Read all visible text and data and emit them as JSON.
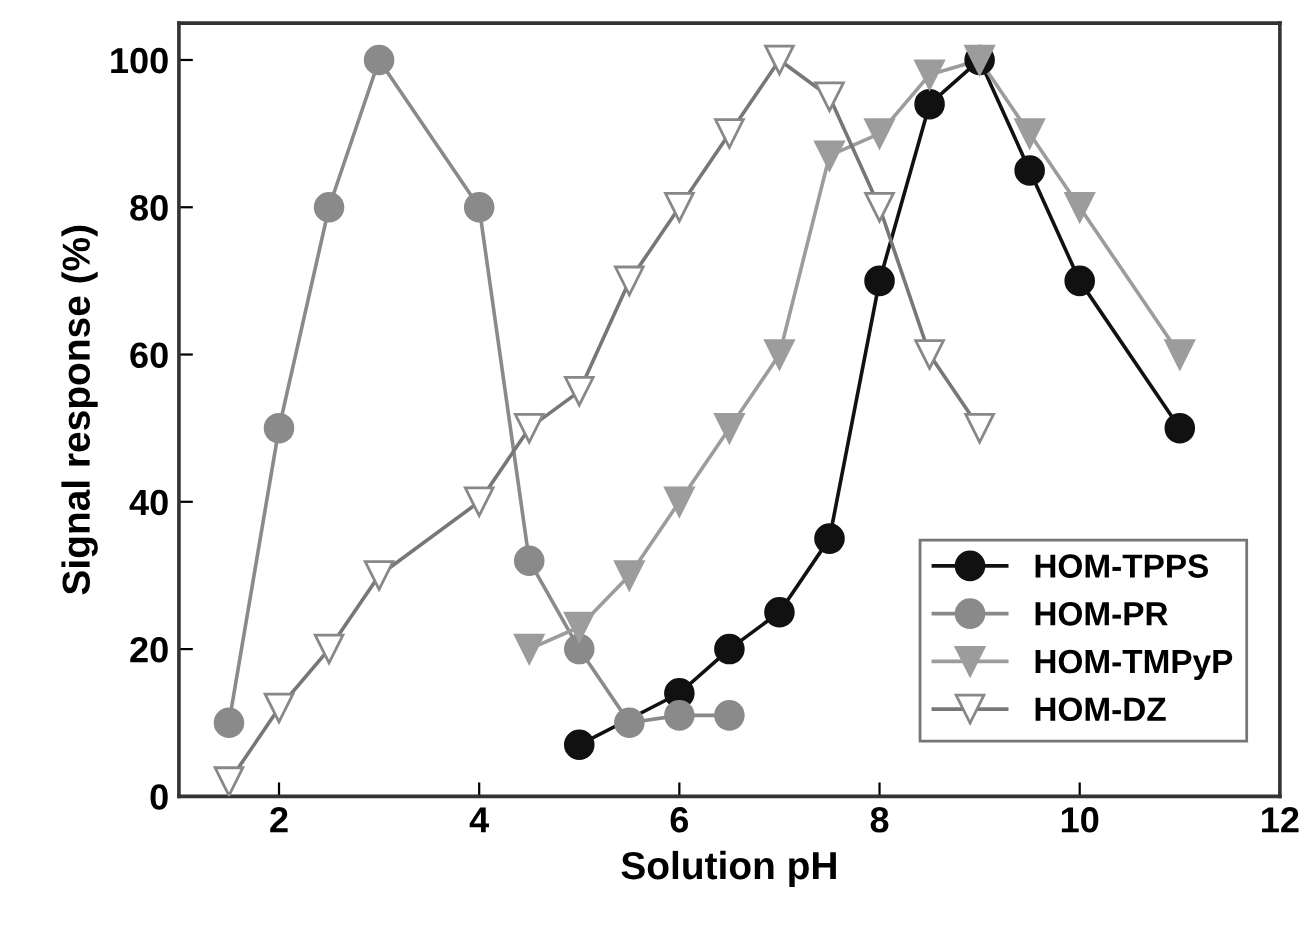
{
  "chart_data": {
    "type": "line",
    "xlabel": "Solution pH",
    "ylabel": "Signal response (%)",
    "xlim": [
      1,
      12
    ],
    "xticks": [
      2,
      4,
      6,
      8,
      10,
      12
    ],
    "ylim": [
      0,
      105
    ],
    "yticks": [
      0,
      20,
      40,
      60,
      80,
      100
    ],
    "grid": false,
    "legend": "bottom right",
    "series": [
      {
        "name": "HOM-TPPS",
        "color": "#111111",
        "marker": "circle",
        "x": [
          5,
          6,
          6.5,
          7,
          7.5,
          8,
          8.5,
          9,
          9.5,
          10,
          11
        ],
        "values": [
          7,
          14,
          20,
          25,
          35,
          70,
          94,
          100,
          85,
          70,
          50
        ]
      },
      {
        "name": "HOM-PR",
        "color": "#8a8a8a",
        "marker": "circle",
        "x": [
          1.5,
          2,
          2.5,
          3,
          4,
          4.5,
          5,
          5.5,
          6,
          6.5
        ],
        "values": [
          10,
          50,
          80,
          100,
          80,
          32,
          20,
          10,
          11,
          11
        ]
      },
      {
        "name": "HOM-TMPyP",
        "color": "#9c9c9c",
        "marker": "triangle",
        "x": [
          4.5,
          5,
          5.5,
          6,
          6.5,
          7,
          7.5,
          8,
          8.5,
          9,
          9.5,
          10,
          11
        ],
        "values": [
          20,
          23,
          30,
          40,
          50,
          60,
          87,
          90,
          98,
          100,
          90,
          80,
          60
        ]
      },
      {
        "name": "HOM-DZ",
        "color": "#ffffff",
        "marker": "triangle",
        "x": [
          1.5,
          2,
          2.5,
          3,
          4,
          4.5,
          5,
          5.5,
          6,
          6.5,
          7,
          7.5,
          8,
          8.5,
          9
        ],
        "values": [
          2,
          12,
          20,
          30,
          40,
          50,
          55,
          70,
          80,
          90,
          100,
          95,
          80,
          60,
          50
        ]
      }
    ]
  }
}
